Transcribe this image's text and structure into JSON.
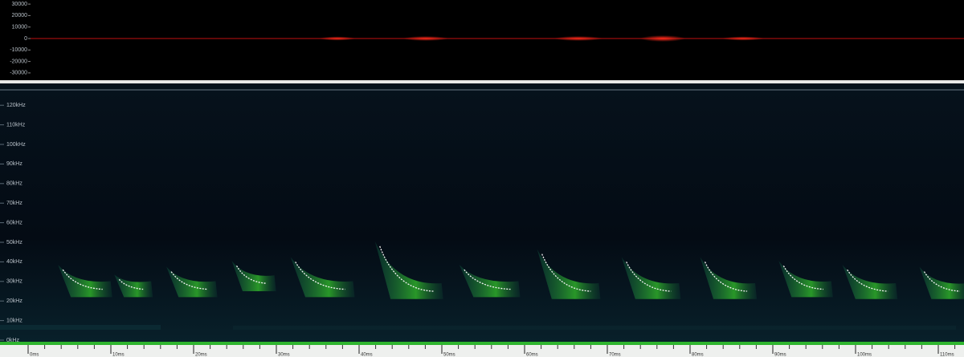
{
  "waveform": {
    "yticks": [
      30000,
      20000,
      10000,
      0,
      -10000,
      -20000,
      -30000
    ]
  },
  "spectrogram": {
    "yticks": [
      {
        "value": 120,
        "label": "120kHz"
      },
      {
        "value": 110,
        "label": "110kHz"
      },
      {
        "value": 100,
        "label": "100kHz"
      },
      {
        "value": 90,
        "label": "90kHz"
      },
      {
        "value": 80,
        "label": "80kHz"
      },
      {
        "value": 70,
        "label": "70kHz"
      },
      {
        "value": 60,
        "label": "60kHz"
      },
      {
        "value": 50,
        "label": "50kHz"
      },
      {
        "value": 40,
        "label": "40kHz"
      },
      {
        "value": 30,
        "label": "30kHz"
      },
      {
        "value": 20,
        "label": "20kHz"
      },
      {
        "value": 10,
        "label": "10kHz"
      },
      {
        "value": 0,
        "label": "0kHz"
      }
    ],
    "calls": [
      {
        "start": 4.2,
        "end": 9.0,
        "high": 36,
        "low": 26
      },
      {
        "start": 11.0,
        "end": 13.9,
        "high": 31,
        "low": 26
      },
      {
        "start": 17.3,
        "end": 21.7,
        "high": 35,
        "low": 26
      },
      {
        "start": 25.2,
        "end": 28.8,
        "high": 38,
        "low": 29
      },
      {
        "start": 32.3,
        "end": 38.3,
        "high": 40,
        "low": 26
      },
      {
        "start": 42.5,
        "end": 49.0,
        "high": 48,
        "low": 25
      },
      {
        "start": 52.7,
        "end": 58.3,
        "high": 36,
        "low": 26
      },
      {
        "start": 62.1,
        "end": 68.0,
        "high": 44,
        "low": 25
      },
      {
        "start": 72.3,
        "end": 77.7,
        "high": 40,
        "low": 25
      },
      {
        "start": 81.8,
        "end": 86.9,
        "high": 40,
        "low": 25
      },
      {
        "start": 91.3,
        "end": 96.1,
        "high": 38,
        "low": 26
      },
      {
        "start": 99.0,
        "end": 103.9,
        "high": 36,
        "low": 25
      },
      {
        "start": 108.3,
        "end": 112.6,
        "high": 35,
        "low": 25
      }
    ]
  },
  "time_axis": {
    "ticks": [
      {
        "value": 0,
        "label": "0ms"
      },
      {
        "value": 10,
        "label": "10ms"
      },
      {
        "value": 20,
        "label": "20ms"
      },
      {
        "value": 30,
        "label": "30ms"
      },
      {
        "value": 40,
        "label": "40ms"
      },
      {
        "value": 50,
        "label": "50ms"
      },
      {
        "value": 60,
        "label": "60ms"
      },
      {
        "value": 70,
        "label": "70ms"
      },
      {
        "value": 80,
        "label": "80ms"
      },
      {
        "value": 90,
        "label": "90ms"
      },
      {
        "value": 100,
        "label": "100ms"
      },
      {
        "value": 110,
        "label": "110ms"
      }
    ]
  }
}
